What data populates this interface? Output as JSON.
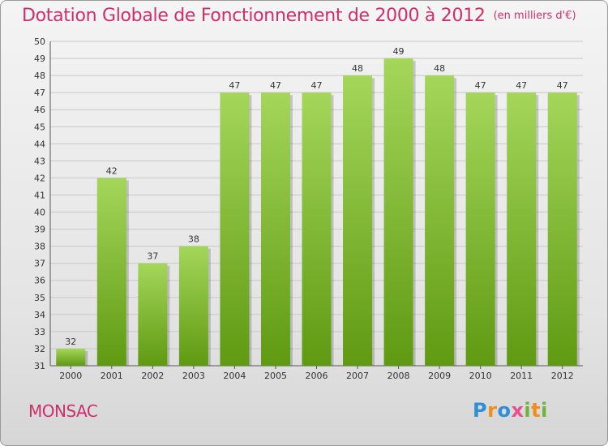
{
  "header": {
    "title": "Dotation Globale de Fonctionnement de 2000 à 2012",
    "unit": "(en milliers d'€)"
  },
  "footer": {
    "commune": "MONSAC",
    "logo_letters": [
      "P",
      "r",
      "o",
      "x",
      "i",
      "t",
      "i"
    ]
  },
  "colors": {
    "title": "#cc2f6b",
    "bar_light": "#a4d65a",
    "bar_dark": "#5f9a12",
    "grid": "#c8c8c8"
  },
  "chart_data": {
    "type": "bar",
    "title": "Dotation Globale de Fonctionnement de 2000 à 2012",
    "subtitle": "(en milliers d'€)",
    "xlabel": "",
    "ylabel": "",
    "categories": [
      "2000",
      "2001",
      "2002",
      "2003",
      "2004",
      "2005",
      "2006",
      "2007",
      "2008",
      "2009",
      "2010",
      "2011",
      "2012"
    ],
    "values": [
      32,
      42,
      37,
      38,
      47,
      47,
      47,
      48,
      49,
      48,
      47,
      47,
      47
    ],
    "ylim": [
      31,
      50
    ],
    "yticks": [
      31,
      32,
      33,
      34,
      35,
      36,
      37,
      38,
      39,
      40,
      41,
      42,
      43,
      44,
      45,
      46,
      47,
      48,
      49,
      50
    ],
    "grid": true,
    "legend": "none"
  }
}
